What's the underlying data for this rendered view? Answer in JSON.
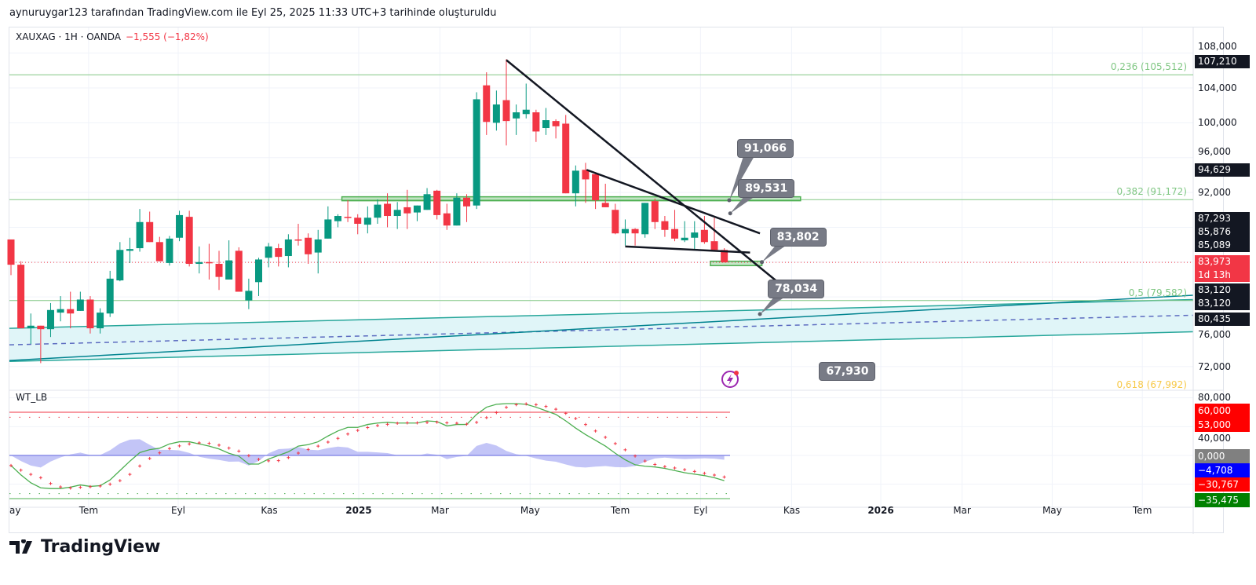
{
  "header": {
    "credit": "aynuruygar123 tarafından TradingView.com ile Eyl 25, 2025 11:33 UTC+3 tarihinde oluşturuldu"
  },
  "legend": {
    "symbol": "XAUXAG · 1H · OANDA",
    "change": "−1,555 (−1,82%)"
  },
  "oscillator": {
    "name": "WT_LB"
  },
  "brand": {
    "name": "TradingView"
  },
  "colors": {
    "up": "#089981",
    "down": "#f23645",
    "fib": "#81c784",
    "fib618": "#f7c948",
    "channel_fill": "#e0f5f8",
    "channel_line": "#26a69a",
    "channel_dark": "#00838f",
    "channel_mid": "#5c6bc0",
    "zone": "#81c784",
    "trend": "#131722",
    "wt1": "#4caf50",
    "wt2": "#f23645",
    "hist": "#b4b6f5"
  },
  "chart_data": {
    "type": "candlestick",
    "title": "XAUXAG · 1H · OANDA",
    "x_unit": "weeks since first visible candle",
    "price_ylim": [
      64.3,
      108.1
    ],
    "candles": [
      [
        86.6,
        86.6,
        82.5,
        83.7
      ],
      [
        83.7,
        84.1,
        76.4,
        76.4
      ],
      [
        76.4,
        78.1,
        74.6,
        76.7
      ],
      [
        76.7,
        76.7,
        72.4,
        76.3
      ],
      [
        76.3,
        79.3,
        75.4,
        78.5
      ],
      [
        78.2,
        80.1,
        77.2,
        78.6
      ],
      [
        78.6,
        80.6,
        76.4,
        78.1
      ],
      [
        78.4,
        80.6,
        78.4,
        79.7
      ],
      [
        79.7,
        80.1,
        75.8,
        76.4
      ],
      [
        76.4,
        78.7,
        75.8,
        78.2
      ],
      [
        78.1,
        83.0,
        77.7,
        82.1
      ],
      [
        81.9,
        86.3,
        81.8,
        85.4
      ],
      [
        85.3,
        86.8,
        83.9,
        85.5
      ],
      [
        85.6,
        90.1,
        85.2,
        88.6
      ],
      [
        88.6,
        89.8,
        86.3,
        86.3
      ],
      [
        86.3,
        86.9,
        84.1,
        84.1
      ],
      [
        83.9,
        87.0,
        83.6,
        86.7
      ],
      [
        86.8,
        89.9,
        86.4,
        89.4
      ],
      [
        89.2,
        89.9,
        83.5,
        83.8
      ],
      [
        83.8,
        85.8,
        82.7,
        84.0
      ],
      [
        84.0,
        86.1,
        82.0,
        83.9
      ],
      [
        83.8,
        85.3,
        80.8,
        82.3
      ],
      [
        82.0,
        86.5,
        82.0,
        84.2
      ],
      [
        85.3,
        85.7,
        80.6,
        80.6
      ],
      [
        79.6,
        82.1,
        78.6,
        80.7
      ],
      [
        81.7,
        84.5,
        80.1,
        84.3
      ],
      [
        84.5,
        86.2,
        83.4,
        85.8
      ],
      [
        85.6,
        86.1,
        83.5,
        84.6
      ],
      [
        84.7,
        87.2,
        83.4,
        86.6
      ],
      [
        86.6,
        88.4,
        85.9,
        86.5
      ],
      [
        86.8,
        87.3,
        83.8,
        84.9
      ],
      [
        85.1,
        87.7,
        82.7,
        86.6
      ],
      [
        86.7,
        90.4,
        86.7,
        88.9
      ],
      [
        88.7,
        89.5,
        88.0,
        89.3
      ],
      [
        89.2,
        91.1,
        88.6,
        89.1
      ],
      [
        89.1,
        89.5,
        87.2,
        88.4
      ],
      [
        88.3,
        90.4,
        87.3,
        89.1
      ],
      [
        89.1,
        91.2,
        88.4,
        90.6
      ],
      [
        90.7,
        91.9,
        88.0,
        89.3
      ],
      [
        89.3,
        90.9,
        87.8,
        90.0
      ],
      [
        90.3,
        92.3,
        87.8,
        89.6
      ],
      [
        89.7,
        90.5,
        88.7,
        90.5
      ],
      [
        90.0,
        92.5,
        90.0,
        91.8
      ],
      [
        92.2,
        92.3,
        88.9,
        89.4
      ],
      [
        89.6,
        90.7,
        87.7,
        88.2
      ],
      [
        88.2,
        91.9,
        88.2,
        91.4
      ],
      [
        91.4,
        91.8,
        88.6,
        90.4
      ],
      [
        90.5,
        103.5,
        90.1,
        102.7
      ],
      [
        104.3,
        105.8,
        98.6,
        100.1
      ],
      [
        100.0,
        103.7,
        99.1,
        102.1
      ],
      [
        102.6,
        107.3,
        97.4,
        100.2
      ],
      [
        100.5,
        102.1,
        98.6,
        101.2
      ],
      [
        101.0,
        104.5,
        100.5,
        101.5
      ],
      [
        101.2,
        101.5,
        97.8,
        99.0
      ],
      [
        99.4,
        101.7,
        98.6,
        100.3
      ],
      [
        100.2,
        100.4,
        98.2,
        99.6
      ],
      [
        99.9,
        100.9,
        91.9,
        91.9
      ],
      [
        91.9,
        95.1,
        90.4,
        94.5
      ],
      [
        94.6,
        95.4,
        90.8,
        93.5
      ],
      [
        94.1,
        94.3,
        90.1,
        91.1
      ],
      [
        90.8,
        93.0,
        90.3,
        90.3
      ],
      [
        90.0,
        90.7,
        87.2,
        87.3
      ],
      [
        87.3,
        88.9,
        85.9,
        87.8
      ],
      [
        87.8,
        87.9,
        85.9,
        87.3
      ],
      [
        87.2,
        90.8,
        86.8,
        90.8
      ],
      [
        91.0,
        91.3,
        87.8,
        88.6
      ],
      [
        88.7,
        89.3,
        86.9,
        87.7
      ],
      [
        87.8,
        90.0,
        86.4,
        86.7
      ],
      [
        86.5,
        88.7,
        86.3,
        86.8
      ],
      [
        86.8,
        88.7,
        85.5,
        87.4
      ],
      [
        87.7,
        89.3,
        86.1,
        86.3
      ],
      [
        86.4,
        89.1,
        85.2,
        85.4
      ],
      [
        85.4,
        85.6,
        83.97,
        83.97
      ]
    ],
    "current_price": 83.973,
    "countdown": "1d 13h",
    "price_ticks": [
      "108,000",
      "104,000",
      "100,000",
      "96,000",
      "92,000",
      "76,000",
      "72,000"
    ],
    "price_tick_values": [
      108,
      104,
      100,
      96,
      92,
      76,
      72
    ],
    "price_labels": [
      {
        "text": "107,210",
        "bg": "#131722"
      },
      {
        "text": "94,629",
        "bg": "#131722"
      },
      {
        "text": "87,293",
        "bg": "#131722"
      },
      {
        "text": "85,876",
        "bg": "#131722"
      },
      {
        "text": "85,089",
        "bg": "#131722"
      },
      {
        "text": "83,973",
        "bg": "#f23645"
      },
      {
        "text": "1d 13h",
        "bg": "#f23645"
      },
      {
        "text": "83,120",
        "bg": "#131722"
      },
      {
        "text": "83,120",
        "bg": "#131722"
      },
      {
        "text": "80,435",
        "bg": "#131722"
      }
    ],
    "fib_levels": [
      {
        "label": "0,236 (105,512)",
        "price": 105.512
      },
      {
        "label": "0,382 (91,172)",
        "price": 91.172
      },
      {
        "label": "0,5 (79,582)",
        "price": 79.582
      },
      {
        "label": "0,618 (67,992)",
        "price": 67.992
      }
    ],
    "trend_lines": [
      {
        "from": [
          50.0,
          107.2
        ],
        "to": [
          78.7,
          80.5
        ]
      },
      {
        "from": [
          58.1,
          94.6
        ],
        "to": [
          75.6,
          87.3
        ]
      },
      {
        "from": [
          62.0,
          85.8
        ],
        "to": [
          74.6,
          85.1
        ]
      }
    ],
    "channel": {
      "x": [
        -0.16,
        119.3
      ],
      "upper": [
        76.4,
        79.7
      ],
      "lower": [
        72.6,
        76.0
      ],
      "mid": [
        74.5,
        77.9
      ],
      "regression": [
        72.7,
        80.2
      ]
    },
    "zones": [
      {
        "x": [
          33.4,
          79.7
        ],
        "price": [
          91.05,
          91.5
        ]
      },
      {
        "x": [
          70.6,
          75.8
        ],
        "price": [
          83.6,
          84.1
        ]
      }
    ],
    "callouts": [
      {
        "text": "91,066",
        "at": [
          72.5,
          91.1
        ]
      },
      {
        "text": "89,531",
        "at": [
          72.6,
          89.6
        ]
      },
      {
        "text": "83,802",
        "at": [
          75.8,
          84.0
        ]
      },
      {
        "text": "78,034",
        "at": [
          75.6,
          78.034
        ]
      },
      {
        "text": "67,930",
        "at": [
          83.0,
          67.93
        ]
      }
    ],
    "time_ticks": [
      {
        "label": "ay",
        "week": -0.5
      },
      {
        "label": "Tem",
        "week": 7.84
      },
      {
        "label": "Eyl",
        "week": 16.88
      },
      {
        "label": "Kas",
        "week": 26.07
      },
      {
        "label": "2025",
        "week": 35.1,
        "bold": true
      },
      {
        "label": "Mar",
        "week": 43.3
      },
      {
        "label": "May",
        "week": 52.4
      },
      {
        "label": "Tem",
        "week": 61.5
      },
      {
        "label": "Eyl",
        "week": 69.6
      },
      {
        "label": "Kas",
        "week": 78.8
      },
      {
        "label": "2026",
        "week": 87.8,
        "bold": true
      },
      {
        "label": "Mar",
        "week": 96.0
      },
      {
        "label": "May",
        "week": 105.1
      },
      {
        "label": "Tem",
        "week": 114.2
      }
    ],
    "oscillator": {
      "name": "WT_LB",
      "levels": {
        "ob1": 60,
        "ob2": 53,
        "os1": -60,
        "os2": -53
      },
      "wt1": [
        -14,
        -27,
        -38,
        -45,
        -46,
        -46,
        -44,
        -41,
        -43,
        -42,
        -34,
        -21,
        -8,
        4,
        8,
        10,
        16,
        19,
        19,
        16,
        13,
        9,
        3,
        -1,
        -12,
        -12,
        -5,
        0,
        5,
        13,
        15,
        19,
        27,
        34,
        39,
        39,
        43,
        45,
        46,
        45,
        45,
        45,
        48,
        47,
        41,
        43,
        43,
        57,
        67,
        71,
        72,
        72,
        71,
        67,
        62,
        57,
        48,
        38,
        29,
        21,
        13,
        3,
        -6,
        -13,
        -15,
        -16,
        -18,
        -21,
        -24,
        -26,
        -28,
        -31,
        -35
      ],
      "ticks": [
        "80,000",
        "40,000"
      ],
      "tick_values": [
        80,
        40
      ],
      "axis_labels": [
        {
          "text": "60,000",
          "bg": "#ff0000"
        },
        {
          "text": "53,000",
          "bg": "#ff0000"
        },
        {
          "text": "0,000",
          "bg": "#808080"
        },
        {
          "text": "−4,708",
          "bg": "#0000ff"
        },
        {
          "text": "−30,767",
          "bg": "#ff0000"
        },
        {
          "text": "−35,475",
          "bg": "#008000"
        }
      ]
    }
  }
}
